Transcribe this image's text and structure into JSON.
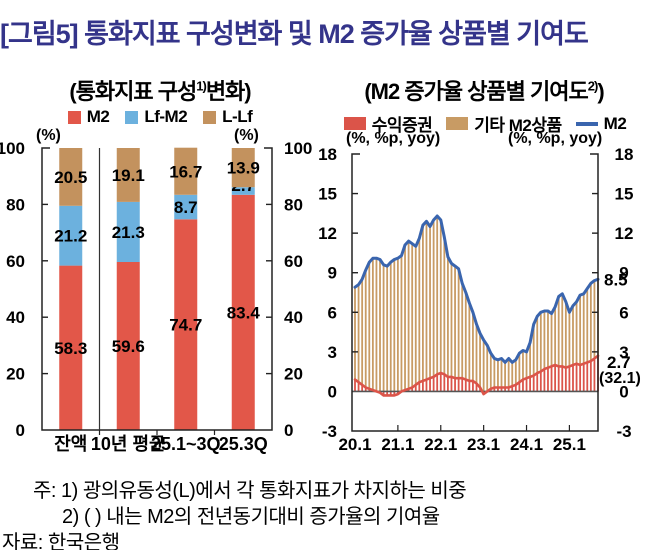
{
  "page": {
    "title": "[그림5] 통화지표 구성변화 및 M2 증가율 상품별 기여도",
    "title_color": "#34348A"
  },
  "footnotes": {
    "note1": "주: 1) 광의유동성(L)에서 각 통화지표가 차지하는 비중",
    "note2": "2) (  ) 내는 M2의 전년동기대비 증가율의 기여율",
    "source": "자료: 한국은행"
  },
  "chart_data": [
    {
      "id": "monetary-composition",
      "type": "bar",
      "subtype": "stacked-vertical",
      "title": "(통화지표 구성1)변화)",
      "title_parts": {
        "pre": "(통화지표 구성",
        "sup": "1)",
        "post": "변화)"
      },
      "unit_label_left": "(%)",
      "unit_label_right": "(%)",
      "categories": [
        "잔액",
        "10년 평균",
        "25.1~3Q",
        "25.3Q"
      ],
      "series": [
        {
          "name": "M2",
          "color": "#E25749",
          "values": [
            58.3,
            59.6,
            74.7,
            83.4
          ]
        },
        {
          "name": "Lf-M2",
          "color": "#6CB1DE",
          "values": [
            21.2,
            21.3,
            8.7,
            2.7
          ]
        },
        {
          "name": "L-Lf",
          "color": "#C3925E",
          "values": [
            20.5,
            19.1,
            16.7,
            13.9
          ]
        }
      ],
      "ylim": [
        0,
        100
      ],
      "yticks": [
        0,
        20,
        40,
        60,
        80,
        100
      ],
      "grid": false,
      "legend_position": "top",
      "separator_after_category": 0
    },
    {
      "id": "m2-growth-contribution",
      "type": "line",
      "subtype": "stacked-thin-bars-with-lines",
      "title": "(M2 증가율 상품별 기여도2))",
      "title_parts": {
        "pre": "(M2 증가율 상품별 기여도",
        "sup": "2)",
        "post": ")"
      },
      "unit_label_left": "(%, %p, yoy)",
      "unit_label_right": "(%, %p, yoy)",
      "frequency": "monthly",
      "x_start": "20.1",
      "x_end": "25.9",
      "x_ticklabels": [
        "20.1",
        "21.1",
        "22.1",
        "23.1",
        "24.1",
        "25.1"
      ],
      "x_tick_month_indices": [
        0,
        12,
        24,
        36,
        48,
        60
      ],
      "ylim": [
        -3,
        18
      ],
      "yticks": [
        -3,
        0,
        3,
        6,
        9,
        12,
        15,
        18
      ],
      "grid": false,
      "legend_position": "top",
      "series": [
        {
          "name": "수익증권",
          "style": "bar+line",
          "color": "#DB5449",
          "values": [
            0.9,
            0.7,
            0.5,
            0.3,
            0.2,
            0.1,
            0.0,
            -0.1,
            -0.3,
            -0.3,
            -0.3,
            -0.3,
            -0.2,
            0.0,
            0.1,
            0.2,
            0.3,
            0.5,
            0.7,
            0.8,
            0.9,
            1.0,
            1.1,
            1.3,
            1.4,
            1.3,
            1.1,
            1.1,
            1.0,
            1.0,
            1.0,
            0.9,
            0.8,
            0.8,
            0.6,
            0.3,
            -0.2,
            0.0,
            0.2,
            0.3,
            0.3,
            0.3,
            0.3,
            0.3,
            0.4,
            0.5,
            0.7,
            0.9,
            1.0,
            1.1,
            1.2,
            1.4,
            1.5,
            1.7,
            1.8,
            1.9,
            2.0,
            1.9,
            1.9,
            1.8,
            1.9,
            2.0,
            2.1,
            2.0,
            2.1,
            2.2,
            2.3,
            2.5,
            2.7
          ]
        },
        {
          "name": "기타 M2상품",
          "style": "bar",
          "color": "#C89B64",
          "stacking": "on top of 수익증권, sum equals M2",
          "values": [
            7.0,
            7.4,
            8.0,
            8.9,
            9.6,
            10.0,
            10.1,
            10.1,
            9.9,
            9.8,
            10.1,
            10.3,
            10.3,
            10.3,
            11.0,
            11.2,
            10.9,
            10.5,
            10.9,
            11.8,
            12.0,
            11.5,
            11.9,
            12.0,
            11.6,
            10.4,
            9.1,
            8.6,
            8.5,
            8.3,
            7.2,
            6.6,
            5.9,
            5.2,
            4.5,
            4.1,
            4.1,
            3.5,
            2.7,
            2.2,
            2.1,
            2.2,
            1.9,
            2.2,
            1.8,
            1.9,
            2.2,
            2.2,
            2.0,
            2.6,
            3.9,
            4.3,
            4.5,
            4.4,
            4.3,
            4.0,
            4.4,
            5.3,
            5.5,
            5.0,
            4.1,
            4.5,
            4.7,
            5.3,
            5.3,
            5.6,
            5.9,
            5.9,
            5.8
          ]
        },
        {
          "name": "M2",
          "style": "line",
          "color": "#3A65AE",
          "values": [
            7.9,
            8.1,
            8.5,
            9.2,
            9.8,
            10.1,
            10.1,
            10.0,
            9.6,
            9.5,
            9.8,
            10.0,
            10.1,
            10.3,
            11.1,
            11.4,
            11.2,
            11.0,
            11.6,
            12.6,
            12.9,
            12.5,
            13.0,
            13.3,
            13.0,
            11.7,
            10.2,
            9.7,
            9.5,
            9.3,
            8.2,
            7.5,
            6.7,
            6.0,
            5.1,
            4.4,
            3.9,
            3.5,
            2.9,
            2.5,
            2.4,
            2.5,
            2.2,
            2.5,
            2.2,
            2.4,
            2.9,
            3.1,
            3.0,
            3.7,
            5.1,
            5.7,
            6.0,
            6.1,
            6.1,
            5.9,
            6.4,
            7.2,
            7.4,
            6.8,
            6.0,
            6.5,
            6.8,
            7.3,
            7.4,
            7.8,
            8.2,
            8.4,
            8.5
          ]
        }
      ],
      "end_labels": [
        {
          "text": "8.5",
          "series": "M2",
          "color": "#3A65AE"
        },
        {
          "text": "2.7",
          "series": "수익증권",
          "color": "#DB5449"
        },
        {
          "text": "(32.1)",
          "series": "수익증권",
          "color": "#DB5449"
        }
      ]
    }
  ]
}
